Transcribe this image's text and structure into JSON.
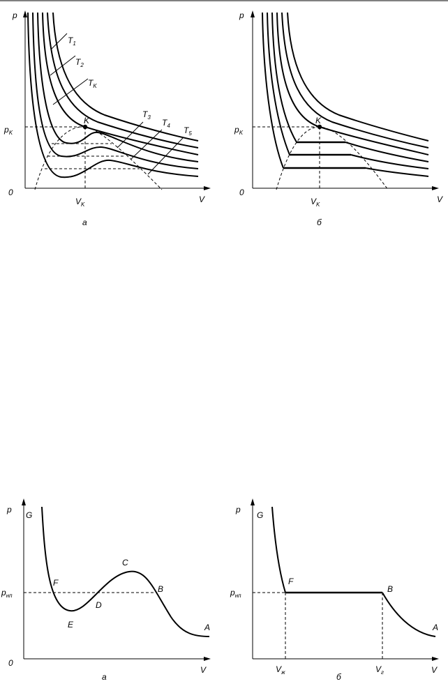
{
  "figure_top": {
    "a": {
      "axis_p": "p",
      "axis_v": "V",
      "origin": "0",
      "pk_label": "p",
      "pk_sub": "K",
      "vk_label": "V",
      "vk_sub": "K",
      "point_label": "K",
      "caption": "а",
      "isotherms": [
        {
          "name": "T",
          "sub": "1"
        },
        {
          "name": "T",
          "sub": "2"
        },
        {
          "name": "T",
          "sub": "K"
        },
        {
          "name": "T",
          "sub": "3"
        },
        {
          "name": "T",
          "sub": "4"
        },
        {
          "name": "T",
          "sub": "5"
        }
      ]
    },
    "b": {
      "axis_p": "p",
      "axis_v": "V",
      "origin": "0",
      "pk_label": "p",
      "pk_sub": "K",
      "vk_label": "V",
      "vk_sub": "K",
      "point_label": "K",
      "caption": "б"
    }
  },
  "figure_bottom": {
    "a": {
      "axis_p": "p",
      "axis_v": "V",
      "origin": "0",
      "pnp_label": "p",
      "pnp_sub": "нп",
      "points": [
        "G",
        "F",
        "E",
        "D",
        "C",
        "B",
        "A"
      ],
      "caption": "а"
    },
    "b": {
      "axis_p": "p",
      "axis_v": "V",
      "pnp_label": "p",
      "pnp_sub": "нп",
      "points": [
        "G",
        "F",
        "B",
        "A"
      ],
      "vzh_label": "V",
      "vzh_sub": "ж",
      "vg_label": "V",
      "vg_sub": "г",
      "caption": "б"
    }
  }
}
